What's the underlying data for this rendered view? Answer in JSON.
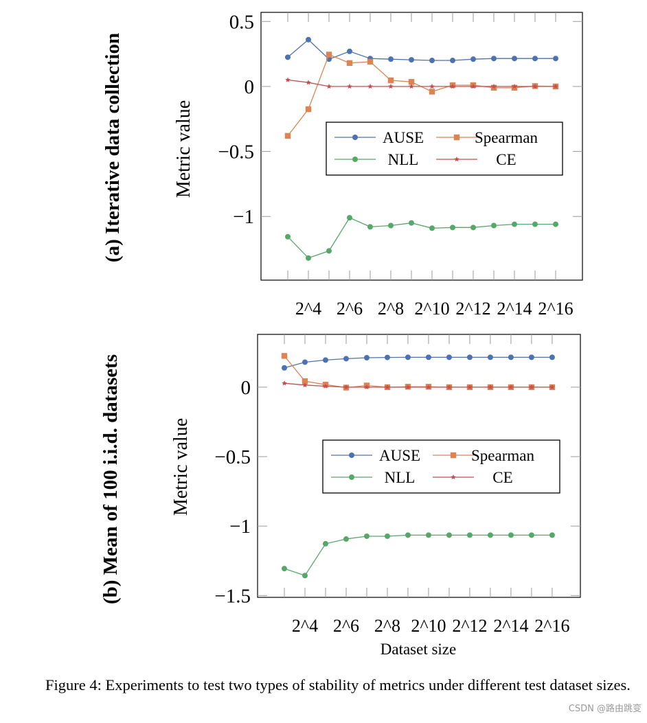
{
  "figure": {
    "caption": "Figure 4:   Experiments to test two types of stability of metrics under different test dataset sizes.",
    "xlabel": "Dataset size",
    "watermark": "CSDN @路由跳变"
  },
  "colors": {
    "AUSE": "#4c72b0",
    "Spearman": "#dd8452",
    "NLL": "#55a868",
    "CE": "#c44e52"
  },
  "chart_data": [
    {
      "type": "line",
      "title": "(a) Iterative data collection",
      "xlabel": "",
      "ylabel": "Metric value",
      "xscale": "log2",
      "x": [
        8,
        16,
        32,
        64,
        128,
        256,
        512,
        1024,
        2048,
        4096,
        8192,
        16384,
        32768,
        65536
      ],
      "xticks": [
        16,
        64,
        256,
        1024,
        4096,
        16384,
        65536
      ],
      "xtick_labels": [
        "2^4",
        "2^6",
        "2^8",
        "2^10",
        "2^12",
        "2^14",
        "2^16"
      ],
      "yticks": [
        0.5,
        0,
        -0.5,
        -1
      ],
      "ytick_labels": [
        "0.5",
        "0",
        "−0.5",
        "−1"
      ],
      "ylim": [
        -1.49,
        0.57
      ],
      "xlim_log2": [
        1.7,
        17.3
      ],
      "legend": "center-right, 2 columns",
      "grid": false,
      "series": [
        {
          "name": "AUSE",
          "marker": "circle",
          "values": [
            0.225,
            0.36,
            0.21,
            0.27,
            0.215,
            0.21,
            0.205,
            0.2,
            0.2,
            0.21,
            0.215,
            0.215,
            0.215,
            0.215
          ]
        },
        {
          "name": "Spearman",
          "marker": "square",
          "values": [
            -0.38,
            -0.175,
            0.245,
            0.18,
            0.19,
            0.047,
            0.035,
            -0.04,
            0.01,
            0.01,
            -0.01,
            -0.01,
            0.003,
            0
          ]
        },
        {
          "name": "NLL",
          "marker": "circle",
          "values": [
            -1.156,
            -1.32,
            -1.265,
            -1.01,
            -1.08,
            -1.07,
            -1.05,
            -1.09,
            -1.085,
            -1.085,
            -1.07,
            -1.06,
            -1.06,
            -1.06
          ]
        },
        {
          "name": "CE",
          "marker": "star",
          "values": [
            0.05,
            0.03,
            0,
            0,
            0,
            0,
            0,
            0,
            0,
            0,
            0,
            0,
            0,
            0
          ]
        }
      ]
    },
    {
      "type": "line",
      "title": "(b) Mean of 100 i.i.d. datasets",
      "xlabel": "Dataset size",
      "ylabel": "Metric value",
      "xscale": "log2",
      "x": [
        8,
        16,
        32,
        64,
        128,
        256,
        512,
        1024,
        2048,
        4096,
        8192,
        16384,
        32768,
        65536
      ],
      "xticks": [
        16,
        64,
        256,
        1024,
        4096,
        16384,
        65536
      ],
      "xtick_labels": [
        "2^4",
        "2^6",
        "2^8",
        "2^10",
        "2^12",
        "2^14",
        "2^16"
      ],
      "yticks": [
        0,
        -0.5,
        -1,
        -1.5
      ],
      "ytick_labels": [
        "0",
        "−0.5",
        "−1",
        "−1.5"
      ],
      "ylim": [
        -1.513,
        0.38
      ],
      "xlim_log2": [
        1.7,
        17.37
      ],
      "legend": "center-right, 2 columns",
      "grid": false,
      "series": [
        {
          "name": "AUSE",
          "marker": "circle",
          "values": [
            0.139,
            0.18,
            0.195,
            0.205,
            0.212,
            0.214,
            0.215,
            0.215,
            0.215,
            0.215,
            0.215,
            0.215,
            0.215,
            0.215
          ]
        },
        {
          "name": "Spearman",
          "marker": "square",
          "values": [
            0.225,
            0.043,
            0.018,
            -0.003,
            0.012,
            0,
            0.003,
            0.003,
            0,
            0,
            0,
            0,
            0,
            0
          ]
        },
        {
          "name": "NLL",
          "marker": "circle",
          "values": [
            -1.306,
            -1.356,
            -1.127,
            -1.093,
            -1.073,
            -1.073,
            -1.065,
            -1.065,
            -1.065,
            -1.065,
            -1.065,
            -1.065,
            -1.065,
            -1.065
          ]
        },
        {
          "name": "CE",
          "marker": "star",
          "values": [
            0.028,
            0.015,
            0.007,
            0,
            0,
            0,
            0,
            0,
            0,
            0,
            0,
            0,
            0,
            0
          ]
        }
      ]
    }
  ]
}
